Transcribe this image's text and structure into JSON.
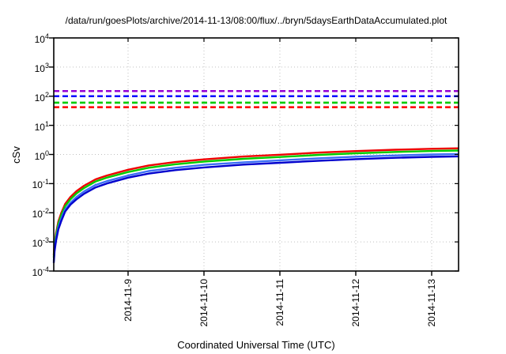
{
  "chart_data": {
    "type": "line",
    "title": "/data/run/goesPlots/archive/2014-11-13/08:00/flux/../bryn/5daysEarthDataAccumulated.plot",
    "xlabel": "Coordinated Universal Time (UTC)",
    "ylabel": "cSv",
    "y_scale": "log10",
    "ylim": [
      0.0001,
      10000
    ],
    "y_tick_exponents": [
      4,
      3,
      2,
      1,
      0,
      -1,
      -2,
      -3,
      -4
    ],
    "xlim_days": [
      0,
      5.3333
    ],
    "x_ticks": [
      {
        "t": 0.979,
        "label": "2014-11-9"
      },
      {
        "t": 1.979,
        "label": "2014-11-10"
      },
      {
        "t": 2.979,
        "label": "2014-11-11"
      },
      {
        "t": 3.979,
        "label": "2014-11-12"
      },
      {
        "t": 4.979,
        "label": "2014-11-13"
      }
    ],
    "grid": true,
    "grid_color": "#c0c0c0",
    "border_color": "#000000",
    "reference_lines": [
      {
        "name": "limit-purple",
        "value": 150,
        "color": "#9400d3",
        "style": "dashed"
      },
      {
        "name": "limit-blue",
        "value": 100,
        "color": "#0000ff",
        "style": "dashed"
      },
      {
        "name": "limit-green",
        "value": 60,
        "color": "#00cc00",
        "style": "dashed"
      },
      {
        "name": "limit-red",
        "value": 42,
        "color": "#ff0000",
        "style": "dashed"
      }
    ],
    "t_days": [
      0,
      0.01,
      0.03,
      0.06,
      0.1,
      0.15,
      0.22,
      0.3,
      0.4,
      0.55,
      0.7,
      0.98,
      1.25,
      1.6,
      1.98,
      2.5,
      2.98,
      3.5,
      3.98,
      4.5,
      4.98,
      5.33
    ],
    "series": [
      {
        "name": "accumulated-dose-red",
        "color": "#ee0000",
        "values": [
          0.00035,
          0.0009,
          0.002,
          0.005,
          0.01,
          0.02,
          0.035,
          0.055,
          0.085,
          0.14,
          0.19,
          0.3,
          0.42,
          0.55,
          0.68,
          0.85,
          0.98,
          1.16,
          1.31,
          1.45,
          1.57,
          1.63
        ]
      },
      {
        "name": "accumulated-dose-green",
        "color": "#00cc00",
        "values": [
          0.00029,
          0.00076,
          0.0017,
          0.0042,
          0.0084,
          0.017,
          0.029,
          0.046,
          0.071,
          0.118,
          0.16,
          0.25,
          0.35,
          0.46,
          0.57,
          0.71,
          0.82,
          0.97,
          1.1,
          1.22,
          1.32,
          1.37
        ]
      },
      {
        "name": "accumulated-dose-lightblue",
        "color": "#3b6ef5",
        "values": [
          0.00022,
          0.00058,
          0.0013,
          0.0032,
          0.0064,
          0.013,
          0.022,
          0.035,
          0.054,
          0.09,
          0.122,
          0.19,
          0.27,
          0.35,
          0.44,
          0.54,
          0.63,
          0.74,
          0.84,
          0.93,
          1.0,
          1.04
        ]
      },
      {
        "name": "accumulated-dose-blue",
        "color": "#0000cd",
        "values": [
          0.00019,
          0.00048,
          0.0011,
          0.0027,
          0.0053,
          0.011,
          0.019,
          0.029,
          0.045,
          0.074,
          0.101,
          0.16,
          0.22,
          0.29,
          0.36,
          0.45,
          0.52,
          0.61,
          0.69,
          0.77,
          0.83,
          0.86
        ]
      }
    ]
  }
}
